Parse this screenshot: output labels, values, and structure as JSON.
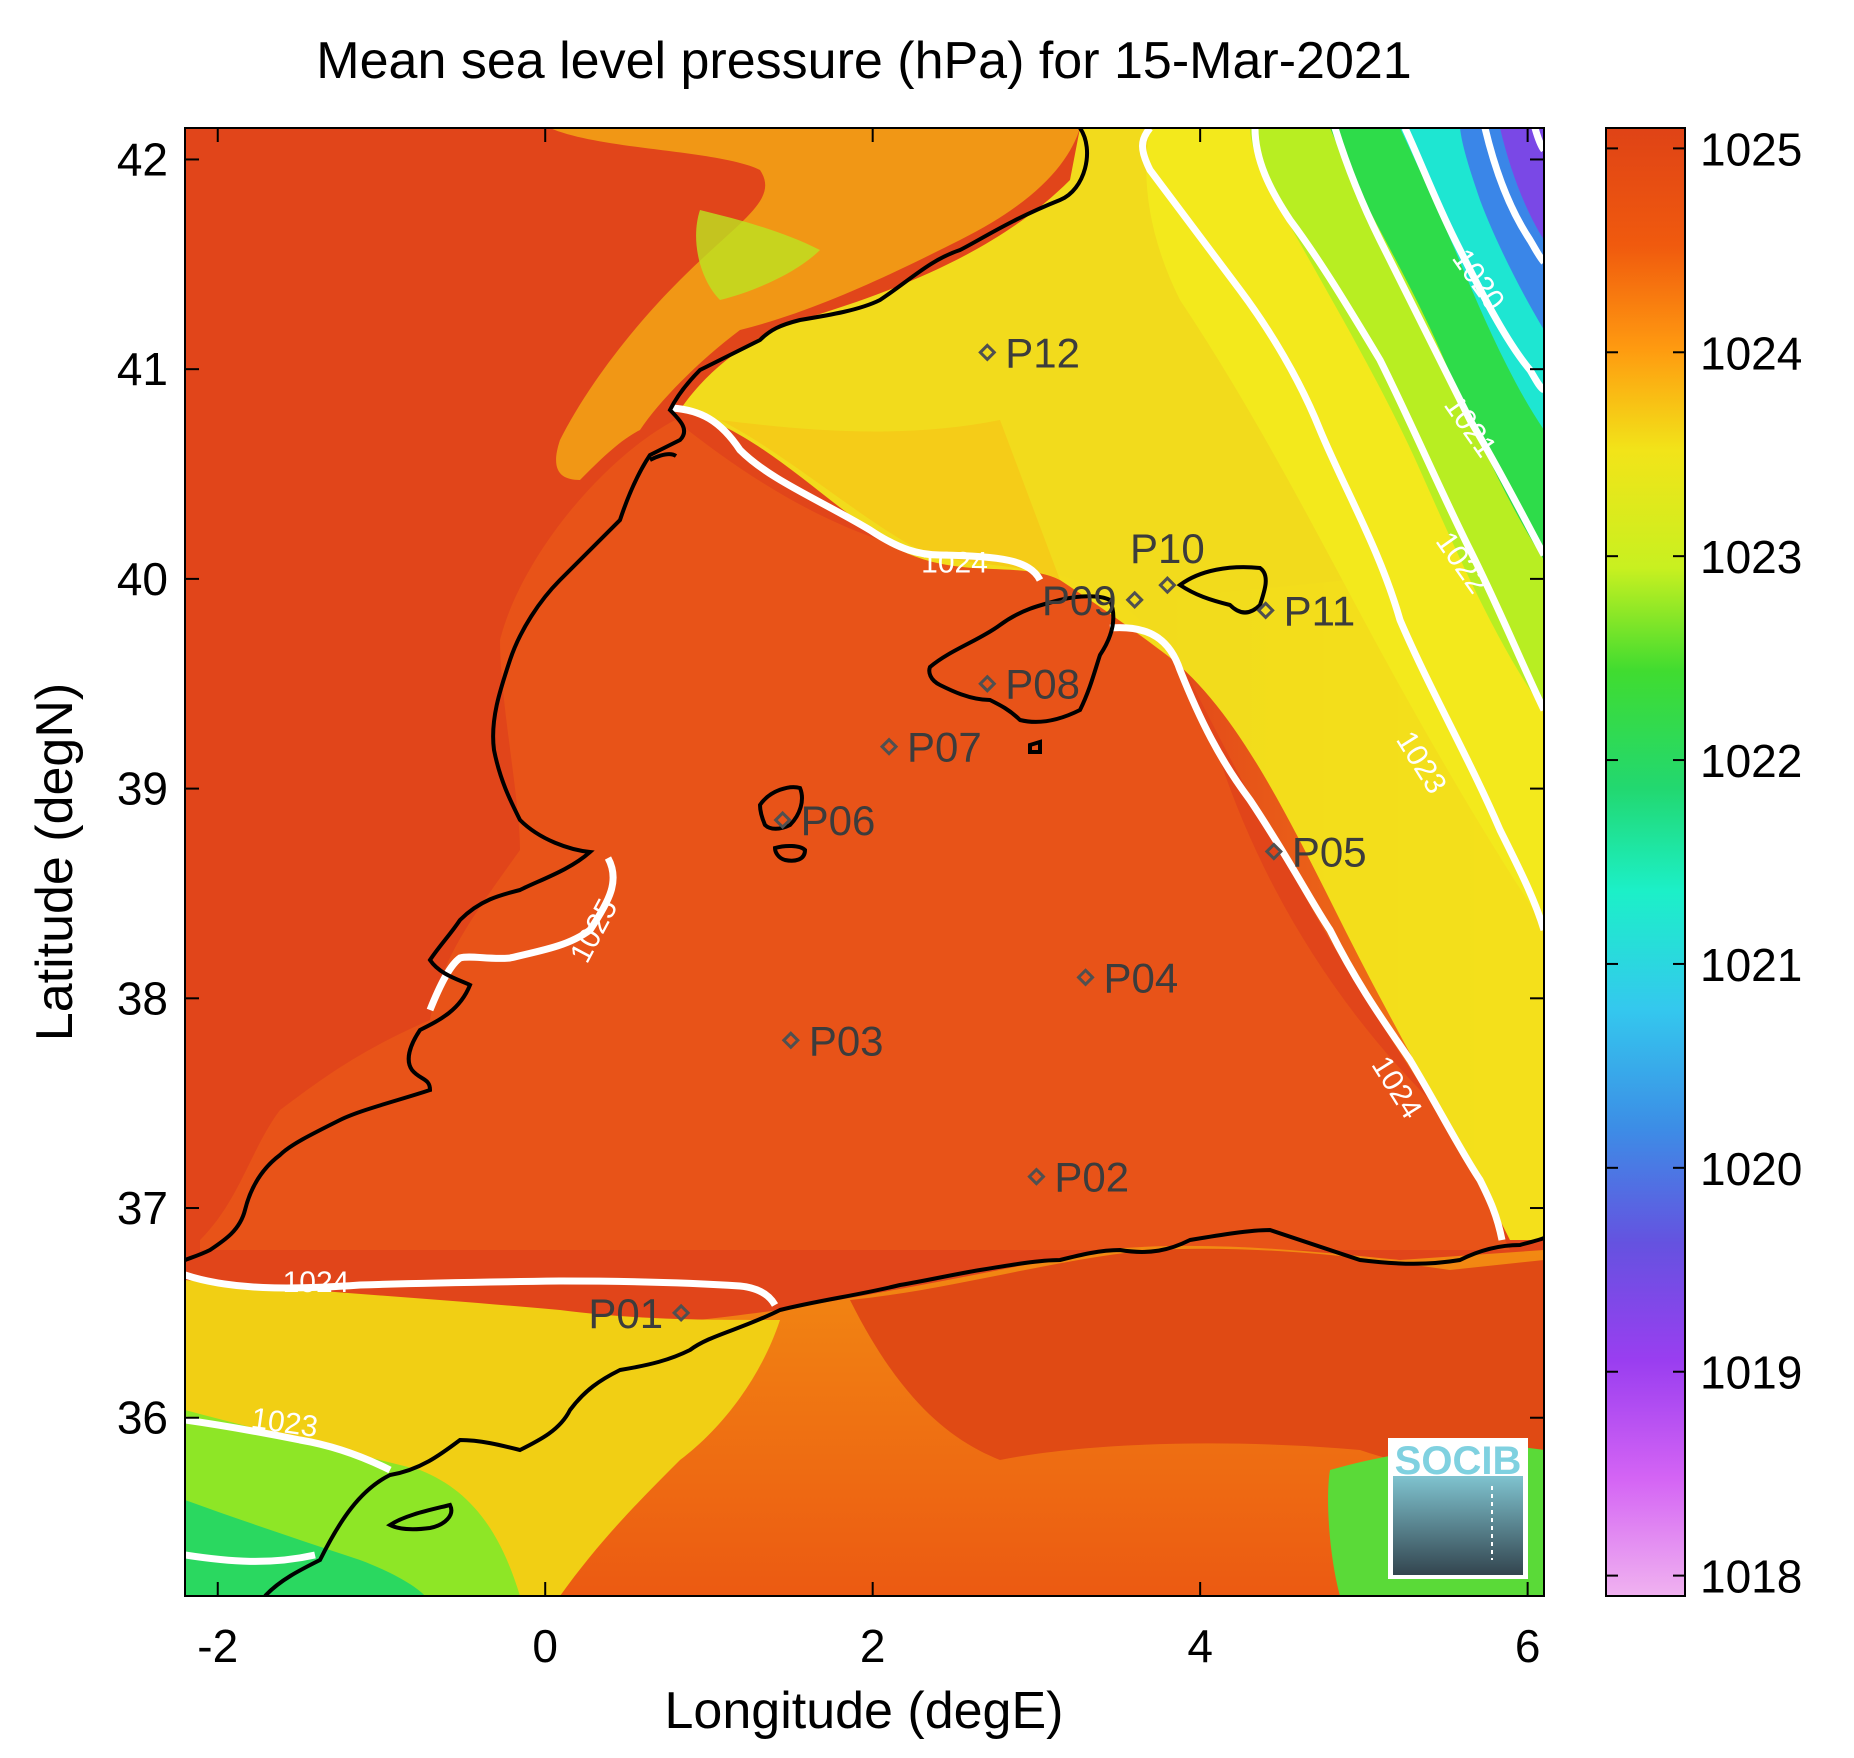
{
  "title": "Mean sea level pressure (hPa) for 15-Mar-2021",
  "x_axis": {
    "label": "Longitude (degE)",
    "range": [
      -2.2,
      6.1
    ],
    "ticks": [
      {
        "value": -2,
        "label": "-2"
      },
      {
        "value": 0,
        "label": "0"
      },
      {
        "value": 2,
        "label": "2"
      },
      {
        "value": 4,
        "label": "4"
      },
      {
        "value": 6,
        "label": "6"
      }
    ]
  },
  "y_axis": {
    "label": "Latitude (degN)",
    "range": [
      35.15,
      42.15
    ],
    "ticks": [
      {
        "value": 36,
        "label": "36"
      },
      {
        "value": 37,
        "label": "37"
      },
      {
        "value": 38,
        "label": "38"
      },
      {
        "value": 39,
        "label": "39"
      },
      {
        "value": 40,
        "label": "40"
      },
      {
        "value": 41,
        "label": "41"
      },
      {
        "value": 42,
        "label": "42"
      }
    ]
  },
  "colorbar": {
    "range": [
      1017.9,
      1025.1
    ],
    "ticks": [
      {
        "value": 1025,
        "label": "1025"
      },
      {
        "value": 1024,
        "label": "1024"
      },
      {
        "value": 1023,
        "label": "1023"
      },
      {
        "value": 1022,
        "label": "1022"
      },
      {
        "value": 1021,
        "label": "1021"
      },
      {
        "value": 1020,
        "label": "1020"
      },
      {
        "value": 1019,
        "label": "1019"
      },
      {
        "value": 1018,
        "label": "1018"
      }
    ]
  },
  "stations": [
    {
      "id": "P01",
      "lon": 0.83,
      "lat": 36.5,
      "label_side": "left"
    },
    {
      "id": "P02",
      "lon": 3.0,
      "lat": 37.15,
      "label_side": "right"
    },
    {
      "id": "P03",
      "lon": 1.5,
      "lat": 37.8,
      "label_side": "right"
    },
    {
      "id": "P04",
      "lon": 3.3,
      "lat": 38.1,
      "label_side": "right"
    },
    {
      "id": "P05",
      "lon": 4.45,
      "lat": 38.7,
      "label_side": "right"
    },
    {
      "id": "P06",
      "lon": 1.45,
      "lat": 38.85,
      "label_side": "right"
    },
    {
      "id": "P07",
      "lon": 2.1,
      "lat": 39.2,
      "label_side": "right"
    },
    {
      "id": "P08",
      "lon": 2.7,
      "lat": 39.5,
      "label_side": "right"
    },
    {
      "id": "P09",
      "lon": 3.6,
      "lat": 39.9,
      "label_side": "left"
    },
    {
      "id": "P10",
      "lon": 3.8,
      "lat": 39.97,
      "label_side": "above"
    },
    {
      "id": "P11",
      "lon": 4.4,
      "lat": 39.85,
      "label_side": "right"
    },
    {
      "id": "P12",
      "lon": 2.7,
      "lat": 41.08,
      "label_side": "right"
    }
  ],
  "contour_labels": [
    {
      "text": "1024",
      "lon": 2.5,
      "lat": 40.03,
      "angle": 0
    },
    {
      "text": "1024",
      "lon": -1.4,
      "lat": 36.6,
      "angle": 0
    },
    {
      "text": "1025",
      "lon": 0.35,
      "lat": 38.3,
      "angle": -62
    },
    {
      "text": "1023",
      "lon": -1.6,
      "lat": 35.93,
      "angle": 8
    },
    {
      "text": "1024",
      "lon": 5.15,
      "lat": 37.55,
      "angle": 58
    },
    {
      "text": "1023",
      "lon": 5.3,
      "lat": 39.1,
      "angle": 58
    },
    {
      "text": "1022",
      "lon": 5.55,
      "lat": 40.05,
      "angle": 55
    },
    {
      "text": "1021",
      "lon": 5.6,
      "lat": 40.7,
      "angle": 55
    },
    {
      "text": "1020",
      "lon": 5.65,
      "lat": 41.4,
      "angle": 55
    }
  ],
  "logo": {
    "text": "SOCIB"
  },
  "colors": {
    "high_pressure": "#e04a16",
    "mid_pressure": "#ff9a10",
    "low_pressure": "#23d02a",
    "contour": "#ffffff",
    "coastline": "#000000",
    "station_marker": "#505050"
  }
}
